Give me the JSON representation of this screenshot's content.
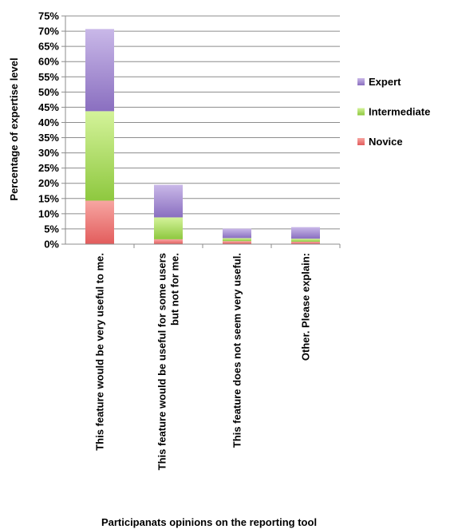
{
  "chart_data": {
    "type": "bar",
    "stacked": true,
    "xlabel": "Participanats opinions on the reporting tool",
    "ylabel": "Percentage of expertise level",
    "ylim": [
      0,
      75
    ],
    "yticks": [
      "0%",
      "5%",
      "10%",
      "15%",
      "20%",
      "25%",
      "30%",
      "35%",
      "40%",
      "45%",
      "50%",
      "55%",
      "60%",
      "65%",
      "70%",
      "75%"
    ],
    "grid": true,
    "legend_position": "right",
    "categories": [
      [
        "This feature would be very useful to me."
      ],
      [
        "This feature would be useful for some users",
        "but not for me."
      ],
      [
        "This feature does not seem very useful."
      ],
      [
        "Other. Please explain:"
      ]
    ],
    "series": [
      {
        "name": "Novice",
        "color": "#f07070",
        "values": [
          14.3,
          1.6,
          1.0,
          0.8
        ]
      },
      {
        "name": "Intermediate",
        "color": "#a8dc55",
        "values": [
          29.4,
          7.2,
          1.0,
          1.0
        ]
      },
      {
        "name": "Expert",
        "color": "#a48cd0",
        "values": [
          27.0,
          10.7,
          3.1,
          3.8
        ]
      }
    ]
  }
}
